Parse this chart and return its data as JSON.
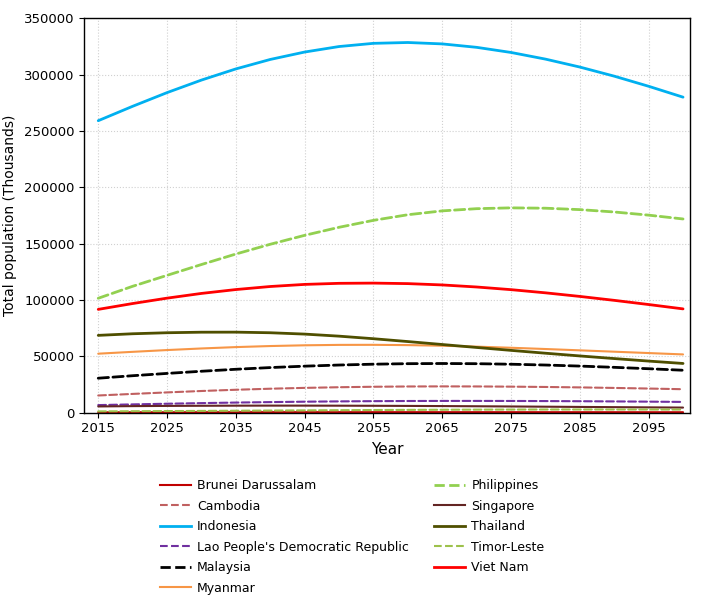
{
  "title": "",
  "xlabel": "Year",
  "ylabel": "Total population (Thousands)",
  "xlim": [
    2013,
    2101
  ],
  "ylim": [
    0,
    350000
  ],
  "yticks": [
    0,
    50000,
    100000,
    150000,
    200000,
    250000,
    300000,
    350000
  ],
  "xticks": [
    2015,
    2025,
    2035,
    2045,
    2055,
    2065,
    2075,
    2085,
    2095
  ],
  "years": [
    2015,
    2020,
    2025,
    2030,
    2035,
    2040,
    2045,
    2050,
    2055,
    2060,
    2065,
    2070,
    2075,
    2080,
    2085,
    2090,
    2095,
    2100
  ],
  "series": {
    "Brunei Darussalam": {
      "data": [
        423,
        445,
        464,
        479,
        492,
        502,
        510,
        516,
        520,
        522,
        521,
        518,
        513,
        507,
        499,
        491,
        481,
        470
      ],
      "color": "#c00000",
      "linestyle": "solid",
      "linewidth": 1.5
    },
    "Cambodia": {
      "data": [
        15322,
        16718,
        18058,
        19302,
        20401,
        21326,
        22071,
        22647,
        23064,
        23312,
        23398,
        23340,
        23163,
        22877,
        22495,
        22026,
        21481,
        20883
      ],
      "color": "#c06060",
      "linestyle": "dashed",
      "linewidth": 1.5
    },
    "Indonesia": {
      "data": [
        259091,
        271858,
        283994,
        295118,
        305014,
        313407,
        319990,
        324874,
        327704,
        328451,
        327204,
        324164,
        319613,
        313720,
        306672,
        298587,
        289614,
        279957
      ],
      "color": "#00b0f0",
      "linestyle": "solid",
      "linewidth": 2.0
    },
    "Lao People's Democratic Republic": {
      "data": [
        6802,
        7425,
        8013,
        8557,
        9043,
        9461,
        9812,
        10090,
        10294,
        10430,
        10500,
        10508,
        10464,
        10371,
        10234,
        10059,
        9852,
        9619
      ],
      "color": "#7030a0",
      "linestyle": "dashed",
      "linewidth": 1.5
    },
    "Malaysia": {
      "data": [
        30651,
        32866,
        34901,
        36820,
        38573,
        40086,
        41333,
        42343,
        43082,
        43540,
        43694,
        43524,
        43059,
        42340,
        41406,
        40298,
        39059,
        37720
      ],
      "color": "#000000",
      "linestyle": "dashed",
      "linewidth": 2.0
    },
    "Myanmar": {
      "data": [
        52403,
        54045,
        55619,
        57037,
        58250,
        59184,
        59843,
        60207,
        60261,
        60006,
        59455,
        58649,
        57656,
        56547,
        55371,
        54167,
        52958,
        51758
      ],
      "color": "#f79646",
      "linestyle": "solid",
      "linewidth": 1.5
    },
    "Philippines": {
      "data": [
        101562,
        112190,
        121891,
        131498,
        140806,
        149468,
        157390,
        164519,
        170701,
        175661,
        179093,
        181039,
        181765,
        181455,
        180201,
        178107,
        175302,
        171908
      ],
      "color": "#92d050",
      "linestyle": "dashed",
      "linewidth": 2.0
    },
    "Singapore": {
      "data": [
        5604,
        5896,
        6073,
        6201,
        6296,
        6337,
        6326,
        6272,
        6184,
        6070,
        5931,
        5767,
        5580,
        5379,
        5175,
        4974,
        4780,
        4598
      ],
      "color": "#632523",
      "linestyle": "solid",
      "linewidth": 1.5
    },
    "Thailand": {
      "data": [
        68657,
        70078,
        70980,
        71463,
        71509,
        70979,
        69782,
        67958,
        65680,
        63158,
        60546,
        57923,
        55338,
        52826,
        50402,
        48072,
        45842,
        43725
      ],
      "color": "#4f4f00",
      "linestyle": "solid",
      "linewidth": 2.0
    },
    "Timor-Leste": {
      "data": [
        1212,
        1352,
        1498,
        1653,
        1813,
        1973,
        2130,
        2282,
        2425,
        2556,
        2672,
        2768,
        2841,
        2888,
        2908,
        2903,
        2877,
        2834
      ],
      "color": "#9dc14b",
      "linestyle": "dashed",
      "linewidth": 1.5
    },
    "Viet Nam": {
      "data": [
        91713,
        96891,
        101668,
        105861,
        109291,
        111997,
        113861,
        114819,
        115017,
        114564,
        113388,
        111566,
        109206,
        106391,
        103201,
        99715,
        96009,
        92143
      ],
      "color": "#ff0000",
      "linestyle": "solid",
      "linewidth": 2.0
    }
  },
  "legend_order_left": [
    "Brunei Darussalam",
    "Indonesia",
    "Malaysia",
    "Philippines",
    "Thailand",
    "Viet Nam"
  ],
  "legend_order_right": [
    "Cambodia",
    "Lao People's Democratic Republic",
    "Myanmar",
    "Singapore",
    "Timor-Leste"
  ],
  "figsize": [
    7.04,
    6.07
  ],
  "dpi": 100,
  "bg_color": "#ffffff",
  "grid_color": "#d0d0d0",
  "spine_color": "#000000"
}
